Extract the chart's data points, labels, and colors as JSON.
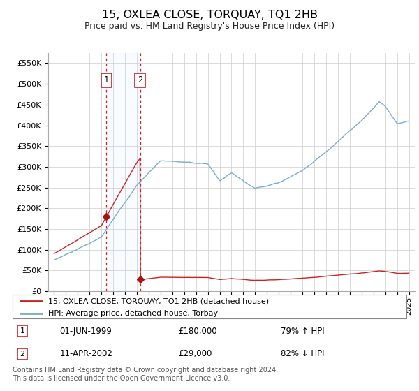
{
  "title": "15, OXLEA CLOSE, TORQUAY, TQ1 2HB",
  "subtitle": "Price paid vs. HM Land Registry's House Price Index (HPI)",
  "legend_line1": "15, OXLEA CLOSE, TORQUAY, TQ1 2HB (detached house)",
  "legend_line2": "HPI: Average price, detached house, Torbay",
  "transaction1": {
    "label": "1",
    "date": "01-JUN-1999",
    "price": 180000,
    "hpi_pct": "79% ↑ HPI",
    "x_year": 1999.42
  },
  "transaction2": {
    "label": "2",
    "date": "11-APR-2002",
    "price": 29000,
    "hpi_pct": "82% ↓ HPI",
    "x_year": 2002.28
  },
  "footer": "Contains HM Land Registry data © Crown copyright and database right 2024.\nThis data is licensed under the Open Government Licence v3.0.",
  "hpi_color": "#7aadcf",
  "price_color": "#cc2222",
  "marker_color": "#aa1111",
  "box_color": "#cc2222",
  "shade_color": "#ddeeff",
  "ylim_min": 0,
  "ylim_max": 575000,
  "yticks": [
    0,
    50000,
    100000,
    150000,
    200000,
    250000,
    300000,
    350000,
    400000,
    450000,
    500000,
    550000
  ],
  "xlim_min": 1994.5,
  "xlim_max": 2025.5,
  "t1_year": 1999.42,
  "t2_year": 2002.28,
  "t1_price": 180000,
  "t2_price": 29000
}
